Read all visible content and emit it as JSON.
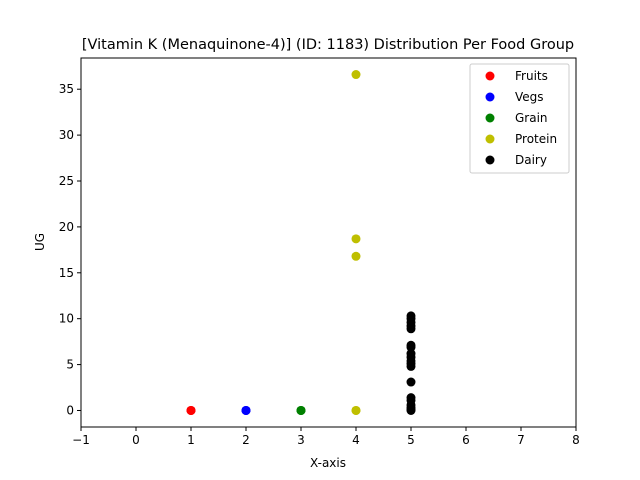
{
  "chart_data": {
    "type": "scatter",
    "title": "[Vitamin K (Menaquinone-4)] (ID: 1183) Distribution Per Food Group",
    "xlabel": "X-axis",
    "ylabel": "UG",
    "xlim": [
      -1,
      8
    ],
    "ylim": [
      -1.8,
      38.4
    ],
    "xticks": [
      -1,
      0,
      1,
      2,
      3,
      4,
      5,
      6,
      7,
      8
    ],
    "yticks": [
      0,
      5,
      10,
      15,
      20,
      25,
      30,
      35
    ],
    "grid": false,
    "legend_position": "top-right",
    "series": [
      {
        "name": "Fruits",
        "color": "#ff0000",
        "points": [
          [
            1,
            0.0
          ],
          [
            1,
            0.0
          ],
          [
            1,
            0.0
          ]
        ]
      },
      {
        "name": "Vegs",
        "color": "#0000ff",
        "points": [
          [
            2,
            0.0
          ],
          [
            2,
            0.0
          ],
          [
            2,
            0.0
          ]
        ]
      },
      {
        "name": "Grain",
        "color": "#008000",
        "points": [
          [
            3,
            0.0
          ],
          [
            3,
            0.0
          ],
          [
            3,
            0.0
          ]
        ]
      },
      {
        "name": "Protein",
        "color": "#bfbf00",
        "points": [
          [
            4,
            36.6
          ],
          [
            4,
            18.7
          ],
          [
            4,
            16.8
          ],
          [
            4,
            0.0
          ],
          [
            4,
            0.0
          ]
        ]
      },
      {
        "name": "Dairy",
        "color": "#000000",
        "points": [
          [
            5,
            10.3
          ],
          [
            5,
            10.0
          ],
          [
            5,
            9.6
          ],
          [
            5,
            9.2
          ],
          [
            5,
            8.9
          ],
          [
            5,
            7.1
          ],
          [
            5,
            6.9
          ],
          [
            5,
            6.2
          ],
          [
            5,
            5.8
          ],
          [
            5,
            5.4
          ],
          [
            5,
            5.1
          ],
          [
            5,
            4.8
          ],
          [
            5,
            3.1
          ],
          [
            5,
            1.4
          ],
          [
            5,
            1.1
          ],
          [
            5,
            0.6
          ],
          [
            5,
            0.3
          ],
          [
            5,
            0.1
          ],
          [
            5,
            0.0
          ]
        ]
      }
    ]
  }
}
